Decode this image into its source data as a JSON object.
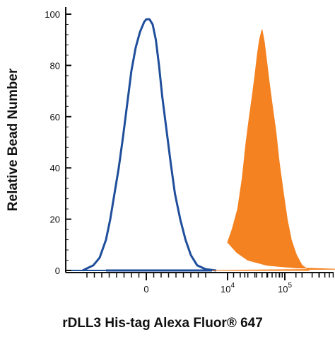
{
  "chart_data": {
    "type": "area",
    "xlabel": "rDLL3 His-tag Alexa Fluor® 647",
    "ylabel": "Relative Bead Number",
    "xscale": "biexponential",
    "yticks": [
      0,
      20,
      40,
      60,
      80,
      100
    ],
    "ylim": [
      0,
      100
    ],
    "xticks": [
      {
        "value": 0,
        "label": "0"
      },
      {
        "value": 10000,
        "label": "10",
        "exponent": "4"
      },
      {
        "value": 100000,
        "label": "10",
        "exponent": "5"
      }
    ],
    "grid": false,
    "series": [
      {
        "style": "outline",
        "color": "#1f4e9b",
        "points": [
          [
            -300,
            0
          ],
          [
            -250,
            2
          ],
          [
            -220,
            5
          ],
          [
            -190,
            12
          ],
          [
            -170,
            20
          ],
          [
            -150,
            30
          ],
          [
            -130,
            40
          ],
          [
            -110,
            52
          ],
          [
            -90,
            65
          ],
          [
            -70,
            78
          ],
          [
            -50,
            87
          ],
          [
            -30,
            93
          ],
          [
            -10,
            97
          ],
          [
            0,
            98
          ],
          [
            15,
            98
          ],
          [
            30,
            96
          ],
          [
            45,
            90
          ],
          [
            60,
            80
          ],
          [
            75,
            68
          ],
          [
            95,
            55
          ],
          [
            115,
            42
          ],
          [
            135,
            30
          ],
          [
            160,
            20
          ],
          [
            185,
            12
          ],
          [
            210,
            6
          ],
          [
            240,
            2
          ],
          [
            280,
            0.5
          ],
          [
            330,
            0
          ]
        ]
      },
      {
        "style": "filled",
        "color": "#f58220",
        "points": [
          [
            300,
            0
          ],
          [
            1500,
            0.5
          ],
          [
            3000,
            1
          ],
          [
            5000,
            2
          ],
          [
            7000,
            4
          ],
          [
            8500,
            7
          ],
          [
            10000,
            11
          ],
          [
            12000,
            16
          ],
          [
            15000,
            24
          ],
          [
            18000,
            36
          ],
          [
            21000,
            50
          ],
          [
            24000,
            60
          ],
          [
            27000,
            68
          ],
          [
            30000,
            76
          ],
          [
            33000,
            84
          ],
          [
            36000,
            90
          ],
          [
            40000,
            94
          ],
          [
            44000,
            89
          ],
          [
            48000,
            82
          ],
          [
            53000,
            74
          ],
          [
            60000,
            65
          ],
          [
            70000,
            54
          ],
          [
            80000,
            42
          ],
          [
            95000,
            30
          ],
          [
            110000,
            20
          ],
          [
            130000,
            12
          ],
          [
            160000,
            6
          ],
          [
            200000,
            2
          ],
          [
            250000,
            0.5
          ],
          [
            262000,
            0
          ]
        ]
      }
    ]
  }
}
